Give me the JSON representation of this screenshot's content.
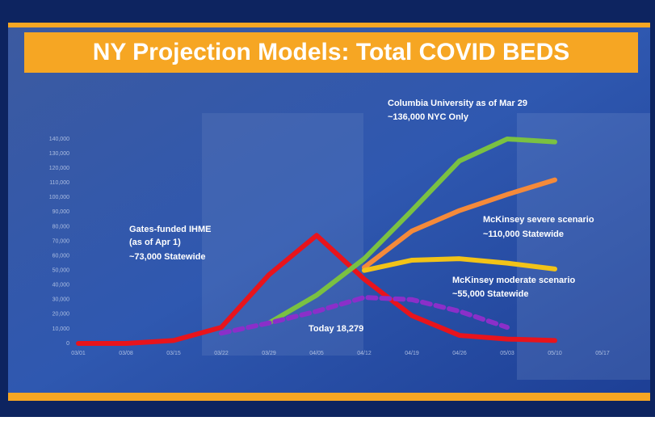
{
  "chart_data": {
    "type": "line",
    "title": "NY Projection Models: Total COVID BEDS",
    "categories": [
      "03/01",
      "03/08",
      "03/15",
      "03/22",
      "03/29",
      "04/05",
      "04/12",
      "04/19",
      "04/26",
      "05/03",
      "05/10",
      "05/17"
    ],
    "ylim": [
      0,
      140000
    ],
    "yticks": [
      0,
      {
        "value": 10000,
        "label": "10,000"
      },
      {
        "value": 20000,
        "label": "20,000"
      },
      {
        "value": 30000,
        "label": "30,000"
      },
      {
        "value": 40000,
        "label": "40,000"
      },
      {
        "value": 50000,
        "label": "50,000"
      },
      {
        "value": 60000,
        "label": "60,000"
      },
      {
        "value": 70000,
        "label": "70,000"
      },
      {
        "value": 80000,
        "label": "80,000"
      },
      {
        "value": 90000,
        "label": "90,000"
      },
      {
        "value": 100000,
        "label": "100,000"
      },
      {
        "value": 110000,
        "label": "110,000"
      },
      {
        "value": 120000,
        "label": "120,000"
      },
      {
        "value": 130000,
        "label": "130,000"
      },
      {
        "value": 140000,
        "label": "140,000"
      }
    ],
    "series": [
      {
        "color": "#e8141c",
        "values": [
          0,
          0,
          2000,
          11000,
          47000,
          74000,
          44000,
          19000,
          5500,
          3000,
          2000,
          null
        ]
      },
      {
        "color": "#7ac142",
        "values": [
          null,
          null,
          null,
          null,
          14000,
          33000,
          58000,
          91000,
          125000,
          140000,
          138000,
          null
        ]
      },
      {
        "color": "#f58a3a",
        "values": [
          null,
          null,
          null,
          null,
          null,
          null,
          52000,
          77000,
          91000,
          102000,
          112000,
          null
        ]
      },
      {
        "color": "#f2c318",
        "values": [
          null,
          null,
          null,
          null,
          null,
          null,
          50000,
          57000,
          58000,
          55000,
          51000,
          null
        ]
      },
      {
        "color": "#8b2fc9",
        "dashed": true,
        "values": [
          null,
          null,
          null,
          7000,
          14000,
          22000,
          31500,
          30000,
          22000,
          11000,
          null,
          null
        ]
      }
    ],
    "annotations": [
      "Columbia University as of Mar 29",
      "~136,000 NYC Only",
      "Gates-funded IHME",
      "(as of Apr 1)",
      "~73,000 Statewide",
      "McKinsey severe scenario",
      "~110,000 Statewide",
      "McKinsey moderate scenario",
      "~55,000 Statewide",
      "Today 18,279"
    ]
  }
}
